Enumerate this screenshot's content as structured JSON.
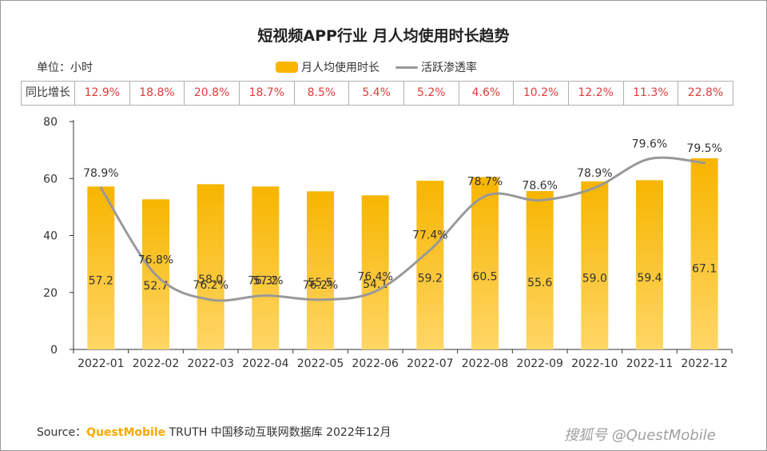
{
  "title": "短视频APP行业 月人均使用时长趋势",
  "unit_label": "单位：小时",
  "legend": {
    "bar": "月人均使用时长",
    "line": "活跃渗透率"
  },
  "yoy": {
    "label": "同比增长",
    "values": [
      "12.9%",
      "18.8%",
      "20.8%",
      "18.7%",
      "8.5%",
      "5.4%",
      "5.2%",
      "4.6%",
      "10.2%",
      "12.2%",
      "11.3%",
      "22.8%"
    ]
  },
  "colors": {
    "bar_top": "#f7b500",
    "bar_bottom": "#ffd666",
    "line": "#999999",
    "yoy_text": "#e23b3b"
  },
  "chart_data": {
    "type": "bar",
    "categories": [
      "2022-01",
      "2022-02",
      "2022-03",
      "2022-04",
      "2022-05",
      "2022-06",
      "2022-07",
      "2022-08",
      "2022-09",
      "2022-10",
      "2022-11",
      "2022-12"
    ],
    "series": [
      {
        "name": "月人均使用时长",
        "type": "bar",
        "values": [
          57.2,
          52.7,
          58.0,
          57.2,
          55.5,
          54.1,
          59.2,
          60.5,
          55.6,
          59.0,
          59.4,
          67.1
        ]
      },
      {
        "name": "活跃渗透率",
        "type": "line",
        "values": [
          78.9,
          76.8,
          76.2,
          76.3,
          76.2,
          76.4,
          77.4,
          78.7,
          78.6,
          78.9,
          79.6,
          79.5
        ],
        "labels": [
          "78.9%",
          "76.8%",
          "76.2%",
          "76.3%",
          "76.2%",
          "76.4%",
          "77.4%",
          "78.7%",
          "78.6%",
          "78.9%",
          "79.6%",
          "79.5%"
        ]
      }
    ],
    "y_ticks": [
      0,
      20,
      40,
      60,
      80
    ],
    "ylim": [
      0,
      80
    ],
    "line_ylim": [
      75,
      80.5
    ],
    "grid": false,
    "legend_position": "top-center"
  },
  "source": {
    "prefix": "Source：",
    "brand": "QuestMobile",
    "suffix": "TRUTH 中国移动互联网数据库 2022年12月"
  },
  "watermark": "搜狐号 @QuestMobile"
}
